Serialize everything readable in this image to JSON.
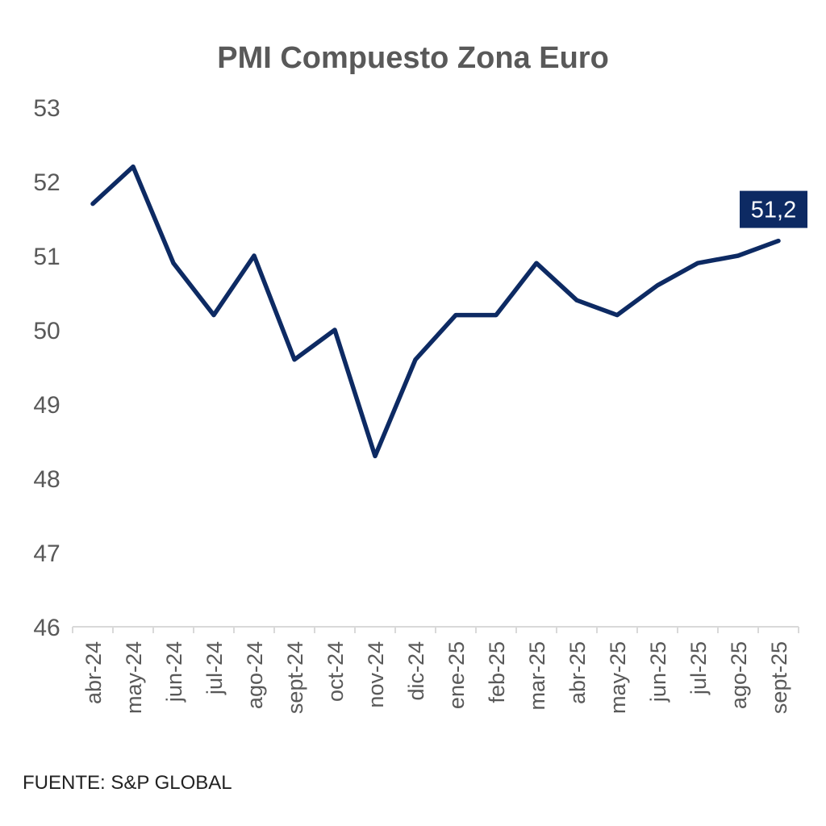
{
  "chart_data": {
    "type": "line",
    "title": "PMI Compuesto Zona Euro",
    "xlabel": "",
    "ylabel": "",
    "categories": [
      "abr-24",
      "may-24",
      "jun-24",
      "jul-24",
      "ago-24",
      "sept-24",
      "oct-24",
      "nov-24",
      "dic-24",
      "ene-25",
      "feb-25",
      "mar-25",
      "abr-25",
      "may-25",
      "jun-25",
      "jul-25",
      "ago-25",
      "sept-25"
    ],
    "series": [
      {
        "values": [
          51.7,
          52.2,
          50.9,
          50.2,
          51.0,
          49.6,
          50.0,
          48.3,
          49.6,
          50.2,
          50.2,
          50.9,
          50.4,
          50.2,
          50.6,
          50.9,
          51.0,
          51.2
        ],
        "color": "#0d2a63"
      }
    ],
    "ylim": [
      46,
      53
    ],
    "yticks": [
      "46",
      "47",
      "48",
      "49",
      "50",
      "51",
      "52",
      "53"
    ],
    "grid": false,
    "legend": "none",
    "annotation": {
      "text": "51,2",
      "category": "sept-25",
      "background": "#0d2a63"
    }
  },
  "source": "FUENTE: S&P GLOBAL"
}
